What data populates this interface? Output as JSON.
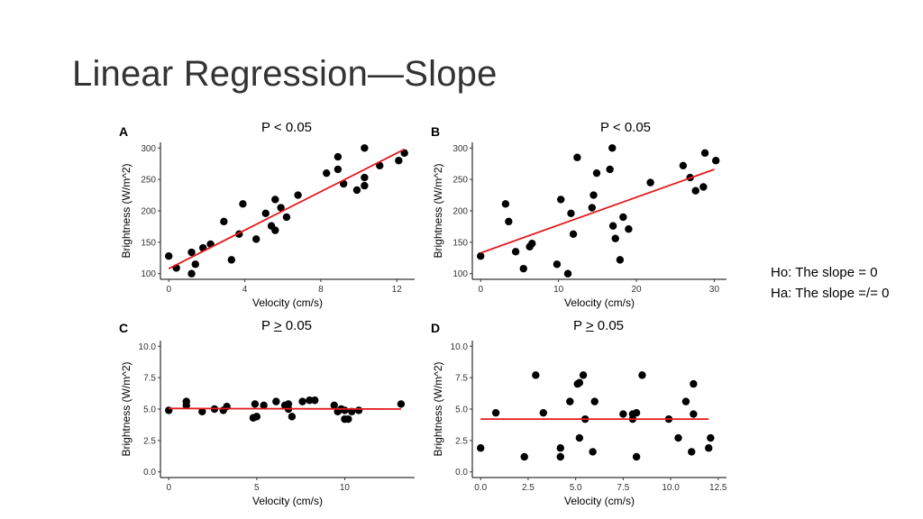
{
  "slide": {
    "title": "Linear Regression—Slope",
    "hypotheses": {
      "h0": "Ho: The slope = 0",
      "ha": "Ha: The slope =/= 0"
    }
  },
  "chart_data": [
    {
      "type": "scatter",
      "panel_label": "A",
      "annotation": "P < 0.05",
      "xlabel": "Velocity (cm/s)",
      "ylabel": "Brightness (W/m^2)",
      "xlim": [
        0,
        12.5
      ],
      "ylim": [
        100,
        300
      ],
      "xticks": [
        0,
        4,
        8,
        12
      ],
      "yticks": [
        100,
        150,
        200,
        250,
        300
      ],
      "fit_line": {
        "x": [
          0,
          12.4
        ],
        "y": [
          108,
          298
        ],
        "color": "#e41a1c"
      },
      "points": [
        [
          0,
          128
        ],
        [
          0.4,
          109
        ],
        [
          1.2,
          100
        ],
        [
          1.2,
          134
        ],
        [
          1.4,
          115
        ],
        [
          1.8,
          141
        ],
        [
          2.2,
          147
        ],
        [
          2.9,
          183
        ],
        [
          3.3,
          122
        ],
        [
          3.7,
          163
        ],
        [
          3.9,
          211
        ],
        [
          4.6,
          155
        ],
        [
          5.1,
          196
        ],
        [
          5.4,
          176
        ],
        [
          5.6,
          169
        ],
        [
          5.6,
          218
        ],
        [
          5.9,
          205
        ],
        [
          6.2,
          190
        ],
        [
          6.8,
          225
        ],
        [
          8.3,
          260
        ],
        [
          8.9,
          286
        ],
        [
          8.9,
          266
        ],
        [
          9.2,
          243
        ],
        [
          9.9,
          233
        ],
        [
          10.3,
          253
        ],
        [
          10.3,
          240
        ],
        [
          10.3,
          300
        ],
        [
          11.1,
          272
        ],
        [
          12.1,
          280
        ],
        [
          12.4,
          292
        ]
      ]
    },
    {
      "type": "scatter",
      "panel_label": "B",
      "annotation": "P < 0.05",
      "xlabel": "Velocity (cm/s)",
      "ylabel": "Brightness (W/m^2)",
      "xlim": [
        0,
        30.5
      ],
      "ylim": [
        100,
        300
      ],
      "xticks": [
        0,
        10,
        20,
        30
      ],
      "yticks": [
        100,
        150,
        200,
        250,
        300
      ],
      "fit_line": {
        "x": [
          0,
          30
        ],
        "y": [
          133,
          266
        ],
        "color": "#e41a1c"
      },
      "points": [
        [
          0,
          128
        ],
        [
          3.2,
          211
        ],
        [
          3.6,
          183
        ],
        [
          4.5,
          135
        ],
        [
          5.5,
          108
        ],
        [
          6.3,
          143
        ],
        [
          6.6,
          148
        ],
        [
          9.8,
          115
        ],
        [
          10.3,
          218
        ],
        [
          11.2,
          100
        ],
        [
          11.6,
          196
        ],
        [
          11.9,
          163
        ],
        [
          12.4,
          285
        ],
        [
          14.3,
          205
        ],
        [
          14.5,
          225
        ],
        [
          14.9,
          260
        ],
        [
          16.6,
          266
        ],
        [
          16.9,
          300
        ],
        [
          17.0,
          176
        ],
        [
          17.3,
          156
        ],
        [
          17.9,
          122
        ],
        [
          18.3,
          190
        ],
        [
          19.0,
          171
        ],
        [
          21.8,
          245
        ],
        [
          26.0,
          272
        ],
        [
          26.9,
          253
        ],
        [
          27.6,
          232
        ],
        [
          28.6,
          238
        ],
        [
          28.8,
          292
        ],
        [
          30.2,
          280
        ]
      ]
    },
    {
      "type": "scatter",
      "panel_label": "C",
      "annotation_prefix": "P ",
      "annotation_sym": ">",
      "annotation_suffix": " 0.05",
      "xlabel": "Velocity (cm/s)",
      "ylabel": "Brightness (W/m^2)",
      "xlim": [
        0,
        13.5
      ],
      "ylim": [
        0,
        10
      ],
      "xticks": [
        0,
        5,
        10
      ],
      "yticks": [
        0.0,
        2.5,
        5.0,
        7.5,
        10.0
      ],
      "fit_line": {
        "x": [
          0,
          13.2
        ],
        "y": [
          5.05,
          5.0
        ],
        "color": "#e41a1c"
      },
      "points": [
        [
          0,
          4.9
        ],
        [
          1.0,
          5.6
        ],
        [
          1.0,
          5.3
        ],
        [
          1.9,
          4.8
        ],
        [
          2.6,
          5.0
        ],
        [
          3.1,
          4.9
        ],
        [
          3.3,
          5.2
        ],
        [
          4.8,
          4.3
        ],
        [
          4.9,
          5.4
        ],
        [
          5.0,
          4.4
        ],
        [
          5.4,
          5.3
        ],
        [
          6.1,
          5.6
        ],
        [
          6.6,
          5.3
        ],
        [
          6.8,
          5.4
        ],
        [
          6.8,
          5.0
        ],
        [
          7.0,
          4.4
        ],
        [
          7.6,
          5.6
        ],
        [
          8.0,
          5.7
        ],
        [
          8.3,
          5.7
        ],
        [
          9.4,
          5.3
        ],
        [
          9.6,
          4.8
        ],
        [
          9.8,
          5.0
        ],
        [
          10.0,
          4.9
        ],
        [
          10.0,
          4.2
        ],
        [
          10.2,
          4.2
        ],
        [
          10.4,
          4.8
        ],
        [
          10.8,
          4.9
        ],
        [
          13.2,
          5.4
        ]
      ]
    },
    {
      "type": "scatter",
      "panel_label": "D",
      "annotation_prefix": "P ",
      "annotation_sym": ">",
      "annotation_suffix": " 0.05",
      "xlabel": "Velocity (cm/s)",
      "ylabel": "Brightness (W/m^2)",
      "xlim": [
        0,
        12.5
      ],
      "ylim": [
        0,
        10
      ],
      "xticks": [
        0.0,
        2.5,
        5.0,
        7.5,
        10.0,
        12.5
      ],
      "yticks": [
        0.0,
        2.5,
        5.0,
        7.5,
        10.0
      ],
      "fit_line": {
        "x": [
          0,
          12.0
        ],
        "y": [
          4.2,
          4.2
        ],
        "color": "#e41a1c"
      },
      "points": [
        [
          0,
          1.9
        ],
        [
          0.8,
          4.7
        ],
        [
          2.3,
          1.2
        ],
        [
          2.9,
          7.7
        ],
        [
          3.3,
          4.7
        ],
        [
          4.2,
          1.9
        ],
        [
          4.2,
          1.2
        ],
        [
          4.7,
          5.6
        ],
        [
          5.1,
          7.0
        ],
        [
          5.2,
          2.7
        ],
        [
          5.2,
          7.1
        ],
        [
          5.4,
          7.7
        ],
        [
          5.5,
          4.2
        ],
        [
          5.9,
          1.6
        ],
        [
          6.0,
          5.6
        ],
        [
          7.5,
          4.6
        ],
        [
          8.0,
          4.6
        ],
        [
          8.0,
          4.2
        ],
        [
          8.2,
          1.2
        ],
        [
          8.2,
          4.7
        ],
        [
          8.5,
          7.7
        ],
        [
          9.9,
          4.2
        ],
        [
          10.4,
          2.7
        ],
        [
          10.8,
          5.6
        ],
        [
          11.1,
          1.6
        ],
        [
          11.2,
          7.0
        ],
        [
          11.2,
          4.6
        ],
        [
          12.0,
          1.9
        ],
        [
          12.1,
          2.7
        ]
      ]
    }
  ]
}
